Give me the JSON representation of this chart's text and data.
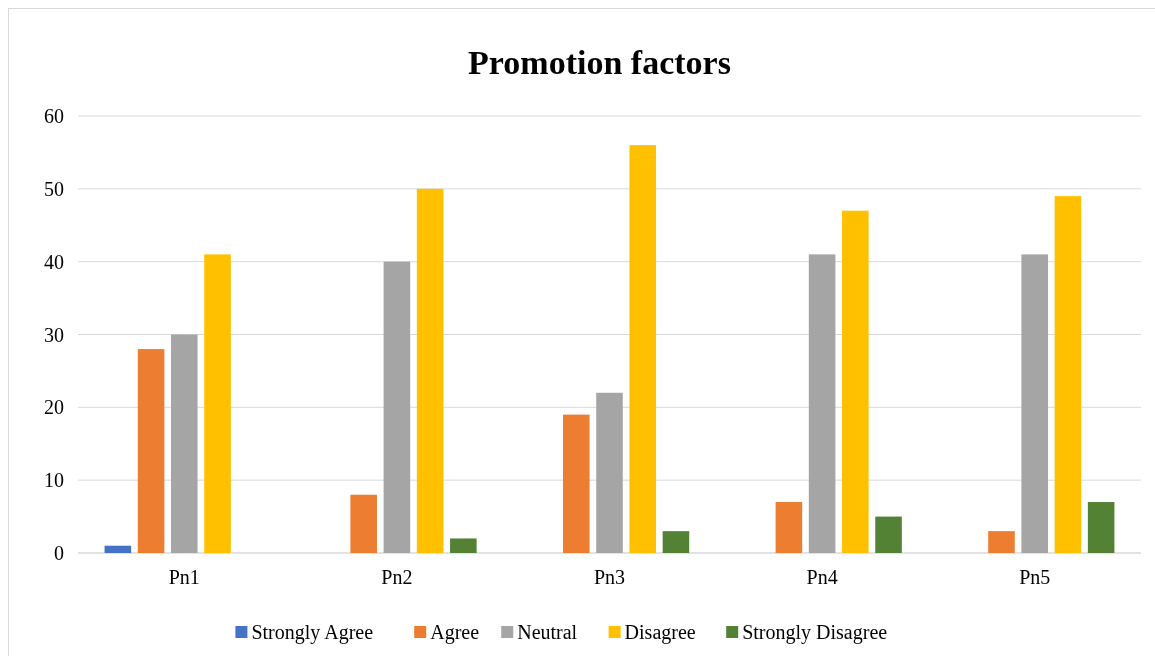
{
  "chart_data": {
    "type": "bar",
    "title": "Promotion factors",
    "categories": [
      "Pn1",
      "Pn2",
      "Pn3",
      "Pn4",
      "Pn5"
    ],
    "series": [
      {
        "name": "Strongly Agree",
        "color": "#4472c4",
        "values": [
          1,
          0,
          0,
          0,
          0
        ]
      },
      {
        "name": "Agree",
        "color": "#ed7d31",
        "values": [
          28,
          8,
          19,
          7,
          3
        ]
      },
      {
        "name": "Neutral",
        "color": "#a5a5a5",
        "values": [
          30,
          40,
          22,
          41,
          41
        ]
      },
      {
        "name": "Disagree",
        "color": "#ffc000",
        "values": [
          41,
          50,
          56,
          47,
          49
        ]
      },
      {
        "name": "Strongly Disagree",
        "color": "#548235",
        "values": [
          0,
          2,
          3,
          5,
          7
        ]
      }
    ],
    "ylim": [
      0,
      60
    ],
    "yticks": [
      0,
      10,
      20,
      30,
      40,
      50,
      60
    ],
    "grid": "y",
    "legend": "bottom"
  }
}
